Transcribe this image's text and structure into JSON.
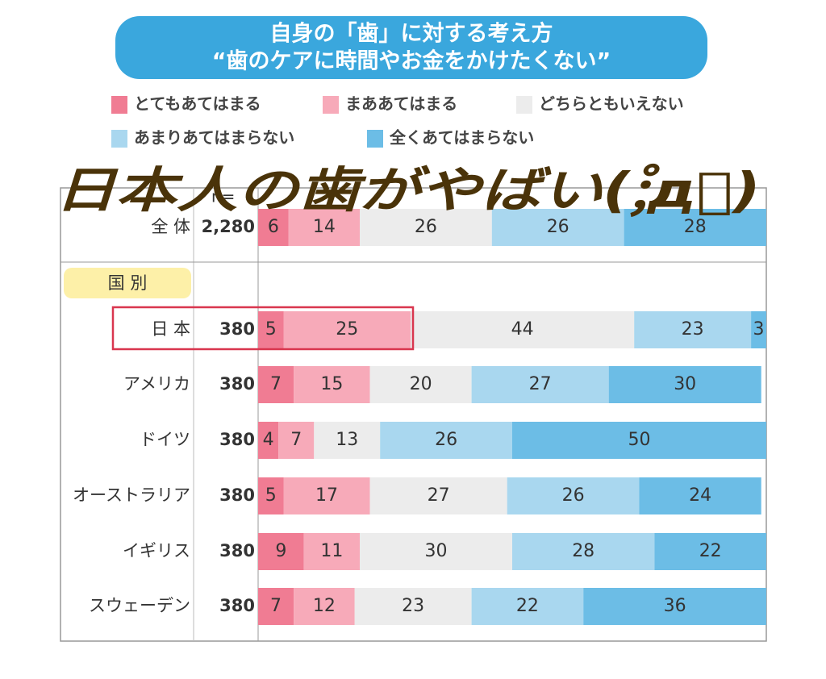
{
  "chart_data": {
    "type": "stacked-bar-100",
    "title": [
      "自身の「歯」に対する考え方",
      "“歯のケアに時間やお金をかけたくない”"
    ],
    "overlay": "日本人の歯がやばい(;゚д゚)",
    "n_header": "n=",
    "group_label": "国 別",
    "categories": [
      "全 体",
      "日 本",
      "アメリカ",
      "ドイツ",
      "オーストラリア",
      "イギリス",
      "スウェーデン"
    ],
    "n": [
      {
        "value": 2280,
        "label": "2,280"
      },
      380,
      380,
      380,
      380,
      380,
      380
    ],
    "xlim": [
      0,
      100
    ],
    "series": [
      {
        "name": "とてもあてはまる",
        "color": "#f07c93",
        "values": [
          6,
          5,
          7,
          4,
          5,
          9,
          7
        ]
      },
      {
        "name": "まああてはまる",
        "color": "#f7aab9",
        "values": [
          14,
          25,
          15,
          7,
          17,
          11,
          12
        ]
      },
      {
        "name": "どちらともいえない",
        "color": "#ececec",
        "values": [
          26,
          44,
          20,
          13,
          27,
          30,
          23
        ]
      },
      {
        "name": "あまりあてはまらない",
        "color": "#a9d7ef",
        "values": [
          26,
          23,
          27,
          26,
          26,
          28,
          22
        ]
      },
      {
        "name": "全くあてはまらない",
        "color": "#6cbde6",
        "values": [
          28,
          3,
          30,
          50,
          24,
          22,
          36
        ]
      }
    ]
  }
}
